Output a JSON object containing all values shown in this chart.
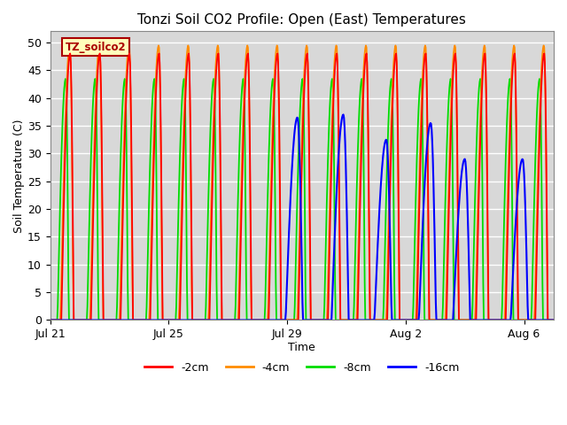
{
  "title": "Tonzi Soil CO2 Profile: Open (East) Temperatures",
  "xlabel": "Time",
  "ylabel": "Soil Temperature (C)",
  "ylim": [
    0,
    52
  ],
  "yticks": [
    0,
    5,
    10,
    15,
    20,
    25,
    30,
    35,
    40,
    45,
    50
  ],
  "plot_bg_color": "#d8d8d8",
  "grid_color": "#ffffff",
  "series": [
    {
      "label": "-2cm",
      "color": "#ff0000"
    },
    {
      "label": "-4cm",
      "color": "#ff8c00"
    },
    {
      "label": "-8cm",
      "color": "#00dd00"
    },
    {
      "label": "-16cm",
      "color": "#0000ff"
    }
  ],
  "watermark": "TZ_soilco2",
  "watermark_bg": "#ffffbb",
  "watermark_fg": "#aa0000",
  "xtick_labels": [
    "Jul 21",
    "Jul 25",
    "Jul 29",
    "Aug 2",
    "Aug 6"
  ],
  "xtick_positions": [
    0,
    4,
    8,
    12,
    16
  ],
  "n_days": 17,
  "blue_start_day": 7.8,
  "peak_2cm": 48.0,
  "peak_4cm": 49.5,
  "peak_8cm": 43.5,
  "peak_16cm_vals": [
    36.5,
    37.0,
    32.5,
    35.5,
    29.0,
    29.0
  ],
  "blue_peak_days": [
    8.35,
    9.9,
    11.35,
    12.85,
    14.0,
    15.95
  ]
}
